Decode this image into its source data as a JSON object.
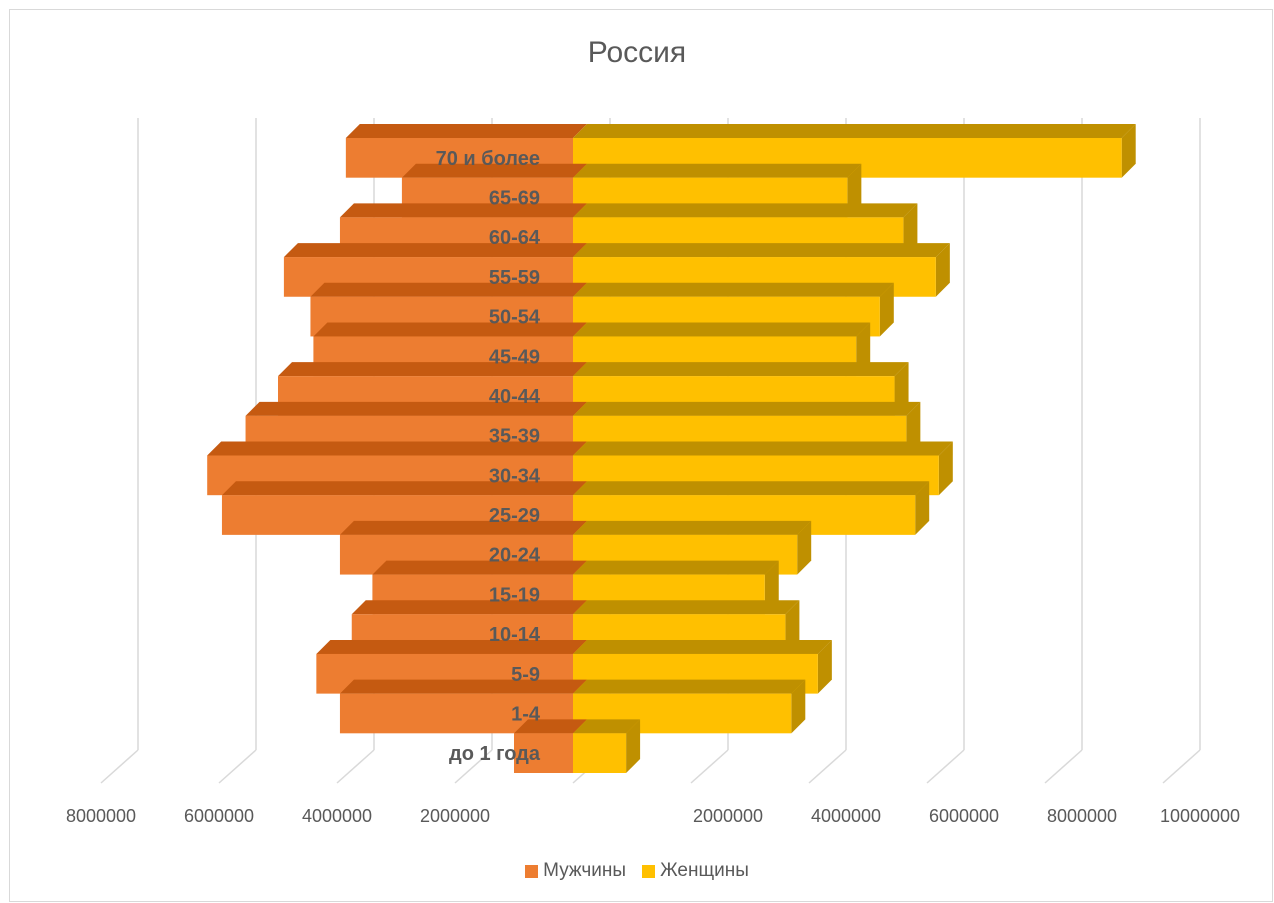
{
  "chart_data": {
    "type": "bar",
    "orientation": "horizontal",
    "style": "3d-population-pyramid",
    "title": "Россия",
    "categories": [
      "до 1 года",
      "1-4",
      "5-9",
      "10-14",
      "15-19",
      "20-24",
      "25-29",
      "30-34",
      "35-39",
      "40-44",
      "45-49",
      "50-54",
      "55-59",
      "60-64",
      "65-69",
      "70 и более"
    ],
    "series": [
      {
        "name": "Мужчины",
        "color": "#ED7D31",
        "side_color": "#C55A11",
        "values": [
          1000000,
          3950000,
          4350000,
          3750000,
          3400000,
          3950000,
          5950000,
          6200000,
          5550000,
          5000000,
          4400000,
          4450000,
          4900000,
          3950000,
          2900000,
          3850000
        ]
      },
      {
        "name": "Женщины",
        "color": "#FFC000",
        "side_color": "#BF9000",
        "values": [
          900000,
          3700000,
          4150000,
          3600000,
          3250000,
          3800000,
          5800000,
          6200000,
          5650000,
          5450000,
          4800000,
          5200000,
          6150000,
          5600000,
          4650000,
          9300000
        ]
      }
    ],
    "x_ticks_left": [
      "8000000",
      "6000000",
      "4000000",
      "2000000"
    ],
    "x_ticks_right": [
      "2000000",
      "4000000",
      "6000000",
      "8000000",
      "10000000"
    ],
    "grid": true,
    "legend_position": "bottom"
  }
}
